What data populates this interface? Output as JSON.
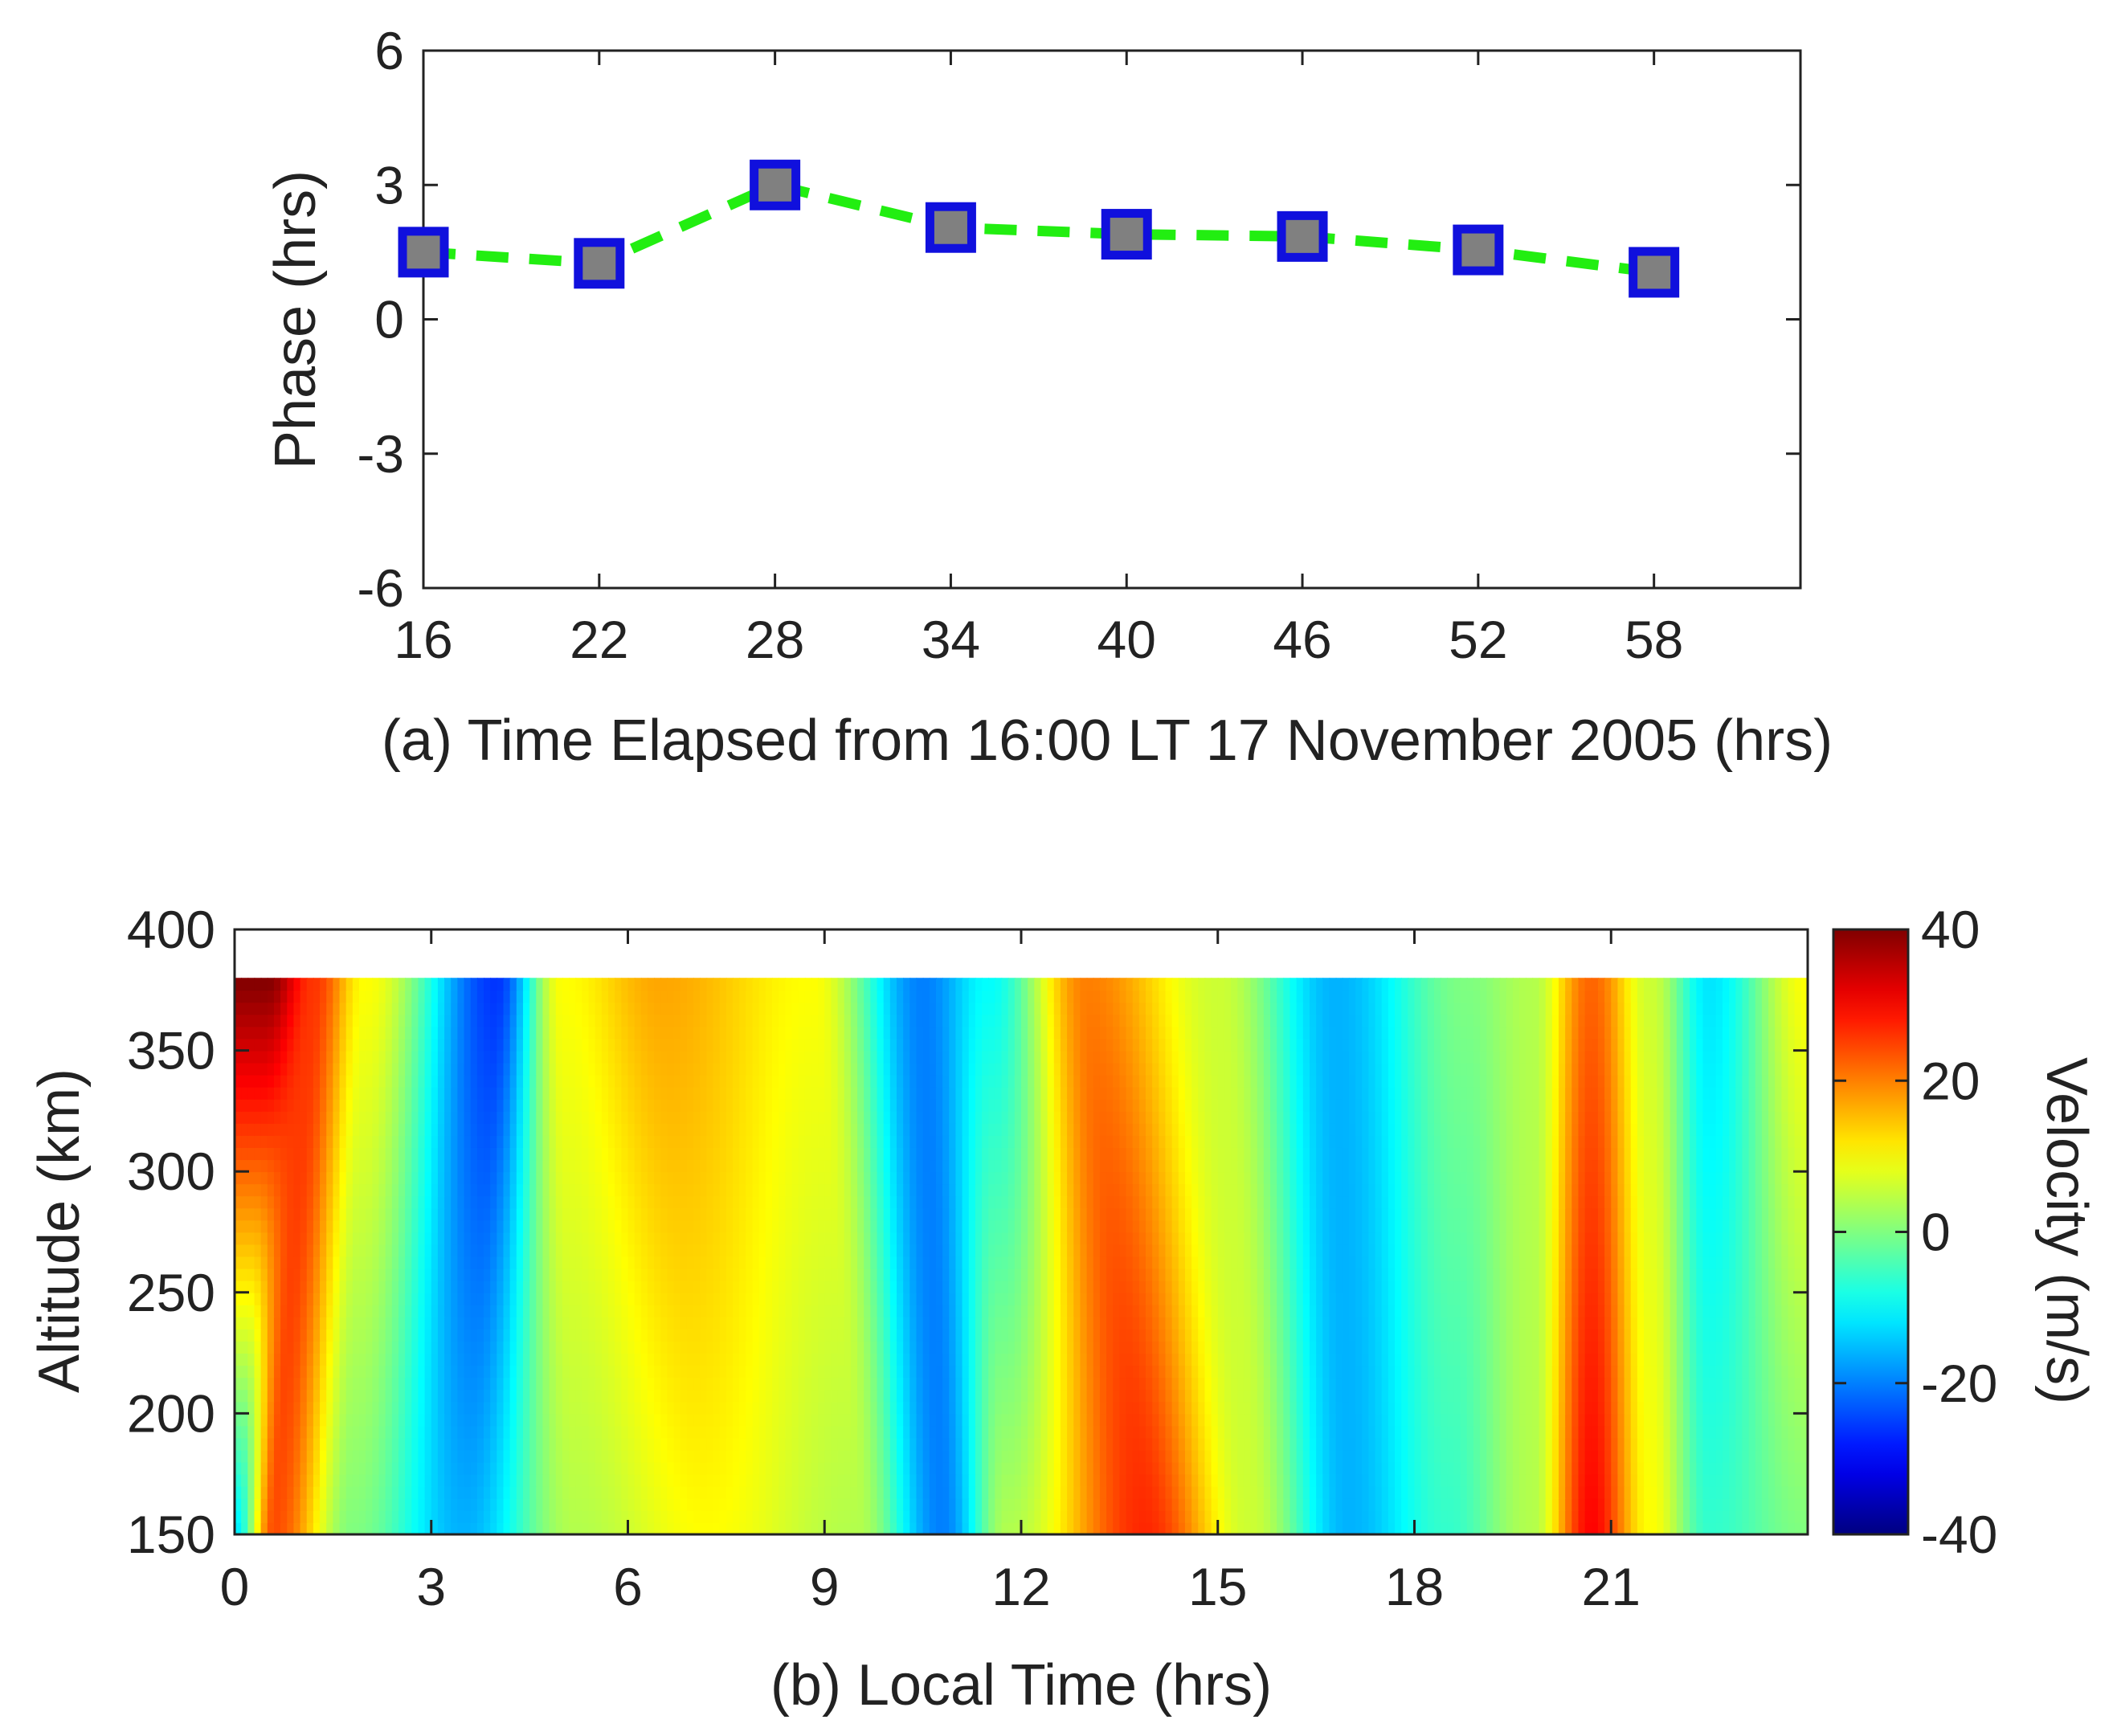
{
  "chart_data": [
    {
      "type": "line",
      "panel": "a",
      "xlabel": "(a) Time Elapsed from 16:00 LT 17 November 2005 (hrs)",
      "ylabel": "Phase (hrs)",
      "x": [
        16,
        22,
        28,
        34,
        40,
        46,
        52,
        58
      ],
      "series": [
        {
          "name": "Phase",
          "values": [
            1.5,
            1.25,
            3.0,
            2.05,
            1.9,
            1.85,
            1.55,
            1.05
          ],
          "line_color": "#22ee11",
          "marker_edge": "#1010dd",
          "marker_fill": "#808080",
          "line_style": "dashed"
        }
      ],
      "xlim": [
        16,
        63
      ],
      "ylim": [
        -6,
        6
      ],
      "xticks": [
        "16",
        "22",
        "28",
        "34",
        "40",
        "46",
        "52",
        "58"
      ],
      "yticks": [
        "6",
        "3",
        "0",
        "-3",
        "-6"
      ],
      "grid": false
    },
    {
      "type": "heatmap",
      "panel": "b",
      "xlabel": "(b) Local Time (hrs)",
      "ylabel": "Altitude (km)",
      "colorbar_label": "Velocity (m/s)",
      "colormap": "jet",
      "xlim": [
        0,
        24
      ],
      "ylim": [
        150,
        400
      ],
      "data_top_altitude": 380,
      "xticks": [
        "0",
        "3",
        "6",
        "9",
        "12",
        "15",
        "18",
        "21"
      ],
      "yticks": [
        "400",
        "350",
        "300",
        "250",
        "200",
        "150"
      ],
      "colorbar_ticks": [
        "40",
        "20",
        "0",
        "-20",
        "-40"
      ],
      "clim": [
        -40,
        40
      ],
      "bands": [
        {
          "t_low": 0.0,
          "t_high": 0.5,
          "v_low": -12,
          "v_high": 40
        },
        {
          "t_low": 0.6,
          "t_high": 1.2,
          "v_low": 24,
          "v_high": 26
        },
        {
          "t_low": 1.8,
          "t_high": 2.0,
          "v_low": 0,
          "v_high": 10
        },
        {
          "t_low": 3.5,
          "t_high": 4.0,
          "v_low": -16,
          "v_high": -26
        },
        {
          "t_low": 5.2,
          "t_high": 5.0,
          "v_low": 4,
          "v_high": 10
        },
        {
          "t_low": 7.2,
          "t_high": 6.5,
          "v_low": 10,
          "v_high": 17
        },
        {
          "t_low": 9.5,
          "t_high": 8.8,
          "v_low": 4,
          "v_high": 10
        },
        {
          "t_low": 10.8,
          "t_high": 10.5,
          "v_low": -20,
          "v_high": -20
        },
        {
          "t_low": 11.8,
          "t_high": 11.5,
          "v_low": 4,
          "v_high": -10
        },
        {
          "t_low": 13.9,
          "t_high": 13.0,
          "v_low": 27,
          "v_high": 20
        },
        {
          "t_low": 15.5,
          "t_high": 15.0,
          "v_low": 6,
          "v_high": 6
        },
        {
          "t_low": 17.0,
          "t_high": 16.8,
          "v_low": -16,
          "v_high": -16
        },
        {
          "t_low": 18.5,
          "t_high": 18.8,
          "v_low": -6,
          "v_high": 0
        },
        {
          "t_low": 19.8,
          "t_high": 19.8,
          "v_low": 4,
          "v_high": 4
        },
        {
          "t_low": 20.7,
          "t_high": 20.7,
          "v_low": 30,
          "v_high": 22
        },
        {
          "t_low": 21.6,
          "t_high": 21.6,
          "v_low": 10,
          "v_high": 6
        },
        {
          "t_low": 22.5,
          "t_high": 22.5,
          "v_low": -6,
          "v_high": -12
        },
        {
          "t_low": 24.0,
          "t_high": 24.0,
          "v_low": 0,
          "v_high": 10
        }
      ]
    }
  ]
}
